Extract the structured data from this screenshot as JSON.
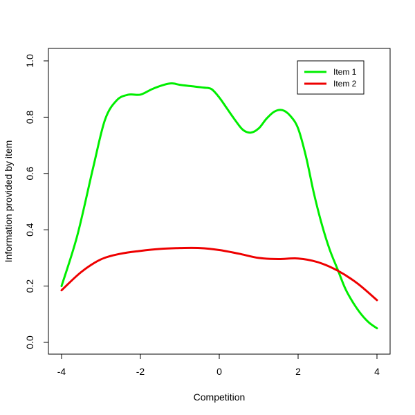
{
  "chart_data": {
    "type": "line",
    "title": "",
    "xlabel": "Competition",
    "ylabel": "Information provided by item",
    "xlim": [
      -4,
      4
    ],
    "ylim": [
      0.0,
      1.0
    ],
    "x_ticks": [
      -4,
      -2,
      0,
      2,
      4
    ],
    "x_tick_labels": [
      "-4",
      "-2",
      "0",
      "2",
      "4"
    ],
    "y_ticks": [
      0.0,
      0.2,
      0.4,
      0.6,
      0.8,
      1.0
    ],
    "y_tick_labels": [
      "0.0",
      "0.2",
      "0.4",
      "0.6",
      "0.8",
      "1.0"
    ],
    "grid": false,
    "legend_position": "top-right",
    "series": [
      {
        "name": "Item 1",
        "color": "#00ee00",
        "x": [
          -4,
          -3.6,
          -3.2,
          -2.9,
          -2.6,
          -2.3,
          -2.0,
          -1.7,
          -1.4,
          -1.2,
          -1.0,
          -0.7,
          -0.4,
          -0.2,
          0.0,
          0.2,
          0.4,
          0.6,
          0.8,
          1.0,
          1.2,
          1.4,
          1.6,
          1.8,
          2.0,
          2.2,
          2.4,
          2.6,
          2.8,
          3.0,
          3.2,
          3.4,
          3.6,
          3.8,
          4.0
        ],
        "y": [
          0.2,
          0.38,
          0.62,
          0.79,
          0.86,
          0.88,
          0.88,
          0.9,
          0.915,
          0.92,
          0.915,
          0.91,
          0.905,
          0.9,
          0.87,
          0.83,
          0.79,
          0.755,
          0.745,
          0.76,
          0.795,
          0.82,
          0.825,
          0.805,
          0.76,
          0.66,
          0.53,
          0.42,
          0.33,
          0.26,
          0.19,
          0.14,
          0.1,
          0.07,
          0.05
        ]
      },
      {
        "name": "Item 2",
        "color": "#ee0000",
        "x": [
          -4,
          -3.5,
          -3.0,
          -2.5,
          -2.0,
          -1.5,
          -1.0,
          -0.5,
          0.0,
          0.5,
          1.0,
          1.5,
          2.0,
          2.5,
          3.0,
          3.5,
          4.0
        ],
        "y": [
          0.185,
          0.25,
          0.295,
          0.315,
          0.325,
          0.332,
          0.335,
          0.335,
          0.328,
          0.315,
          0.3,
          0.296,
          0.298,
          0.285,
          0.255,
          0.21,
          0.15
        ]
      }
    ]
  }
}
